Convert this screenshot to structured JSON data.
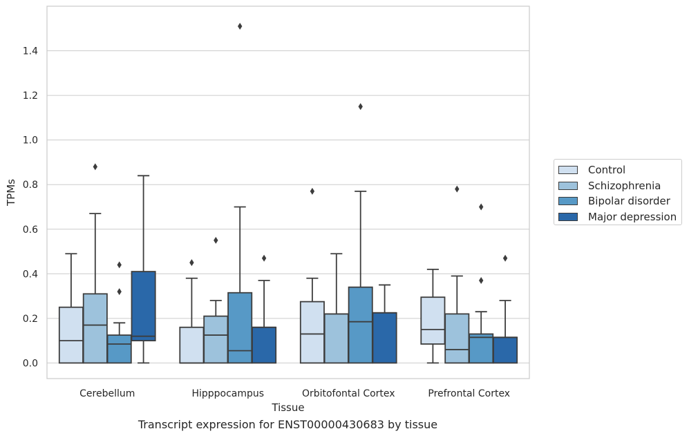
{
  "chart_data": {
    "type": "box",
    "xlabel": "Tissue",
    "ylabel": "TPMs",
    "caption": "Transcript expression for ENST00000430683 by tissue",
    "ylim": [
      -0.07,
      1.6
    ],
    "yticks": [
      0.0,
      0.2,
      0.4,
      0.6,
      0.8,
      1.0,
      1.2,
      1.4
    ],
    "ytick_labels": [
      "0.0",
      "0.2",
      "0.4",
      "0.6",
      "0.8",
      "1.0",
      "1.2",
      "1.4"
    ],
    "grid": "horizontal",
    "legend_position": "right",
    "categories": [
      "Cerebellum",
      "Hipppocampus",
      "Orbitofontal Cortex",
      "Prefrontal Cortex"
    ],
    "series": [
      {
        "name": "Control",
        "color": "#d0e0f0",
        "boxes": [
          {
            "whislo": 0.0,
            "q1": 0.0,
            "med": 0.1,
            "q3": 0.25,
            "whishi": 0.49,
            "fliers": []
          },
          {
            "whislo": 0.0,
            "q1": 0.0,
            "med": 0.0,
            "q3": 0.16,
            "whishi": 0.38,
            "fliers": [
              0.45
            ]
          },
          {
            "whislo": 0.0,
            "q1": 0.0,
            "med": 0.13,
            "q3": 0.275,
            "whishi": 0.38,
            "fliers": [
              0.77
            ]
          },
          {
            "whislo": 0.0,
            "q1": 0.085,
            "med": 0.15,
            "q3": 0.295,
            "whishi": 0.42,
            "fliers": []
          }
        ]
      },
      {
        "name": "Schizophrenia",
        "color": "#9dc2dc",
        "boxes": [
          {
            "whislo": 0.0,
            "q1": 0.0,
            "med": 0.17,
            "q3": 0.31,
            "whishi": 0.67,
            "fliers": [
              0.88
            ]
          },
          {
            "whislo": 0.0,
            "q1": 0.0,
            "med": 0.125,
            "q3": 0.21,
            "whishi": 0.28,
            "fliers": [
              0.55
            ]
          },
          {
            "whislo": 0.0,
            "q1": 0.0,
            "med": 0.22,
            "q3": 0.22,
            "whishi": 0.49,
            "fliers": []
          },
          {
            "whislo": 0.0,
            "q1": 0.0,
            "med": 0.06,
            "q3": 0.22,
            "whishi": 0.39,
            "fliers": [
              0.78
            ]
          }
        ]
      },
      {
        "name": "Bipolar disorder",
        "color": "#5799c6",
        "boxes": [
          {
            "whislo": 0.0,
            "q1": 0.0,
            "med": 0.085,
            "q3": 0.125,
            "whishi": 0.18,
            "fliers": [
              0.32,
              0.44
            ]
          },
          {
            "whislo": 0.0,
            "q1": 0.0,
            "med": 0.055,
            "q3": 0.315,
            "whishi": 0.7,
            "fliers": [
              1.51
            ]
          },
          {
            "whislo": 0.0,
            "q1": 0.0,
            "med": 0.185,
            "q3": 0.34,
            "whishi": 0.77,
            "fliers": [
              1.15
            ]
          },
          {
            "whislo": 0.0,
            "q1": 0.0,
            "med": 0.115,
            "q3": 0.13,
            "whishi": 0.23,
            "fliers": [
              0.37,
              0.7
            ]
          }
        ]
      },
      {
        "name": "Major depression",
        "color": "#2a68a9",
        "boxes": [
          {
            "whislo": 0.0,
            "q1": 0.1,
            "med": 0.12,
            "q3": 0.41,
            "whishi": 0.84,
            "fliers": []
          },
          {
            "whislo": 0.0,
            "q1": 0.0,
            "med": 0.16,
            "q3": 0.16,
            "whishi": 0.37,
            "fliers": [
              0.47
            ]
          },
          {
            "whislo": 0.0,
            "q1": 0.0,
            "med": 0.225,
            "q3": 0.225,
            "whishi": 0.35,
            "fliers": []
          },
          {
            "whislo": 0.0,
            "q1": 0.0,
            "med": 0.115,
            "q3": 0.115,
            "whishi": 0.28,
            "fliers": [
              0.47
            ]
          }
        ]
      }
    ]
  }
}
